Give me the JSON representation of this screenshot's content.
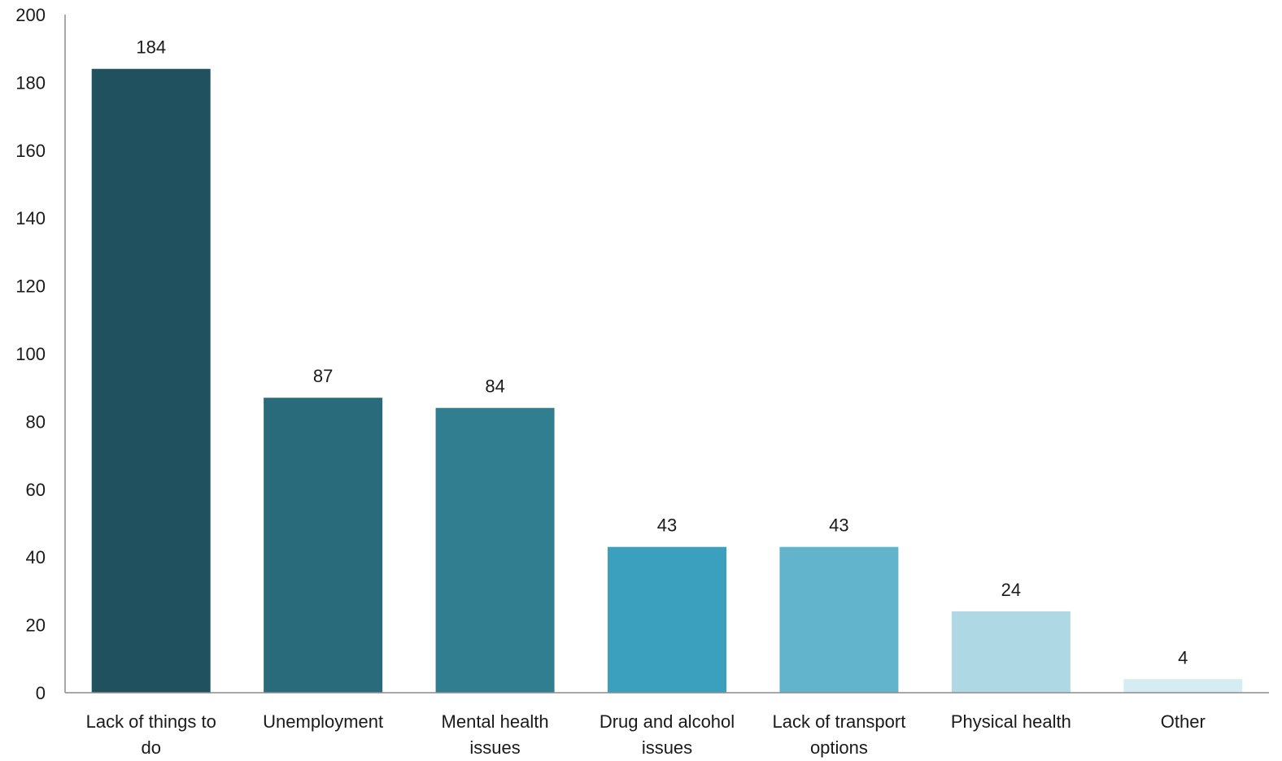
{
  "chart_data": {
    "type": "bar",
    "title": "",
    "xlabel": "",
    "ylabel": "",
    "categories": [
      [
        "Lack of things to",
        "do"
      ],
      [
        "Unemployment"
      ],
      [
        "Mental health",
        "issues"
      ],
      [
        "Drug and alcohol",
        "issues"
      ],
      [
        "Lack of transport",
        "options"
      ],
      [
        "Physical health"
      ],
      [
        "Other"
      ]
    ],
    "values": [
      184,
      87,
      84,
      43,
      43,
      24,
      4
    ],
    "data_labels": [
      "184",
      "87",
      "84",
      "43",
      "43",
      "24",
      "4"
    ],
    "colors": [
      "#20515f",
      "#296b7a",
      "#317e91",
      "#3aa0bd",
      "#62b4cc",
      "#add8e4",
      "#d6ecf3"
    ],
    "ylim": [
      0,
      200
    ],
    "yticks": [
      0,
      20,
      40,
      60,
      80,
      100,
      120,
      140,
      160,
      180,
      200
    ],
    "grid": false,
    "legend": "none",
    "axis_color": "#8c8c8c"
  }
}
